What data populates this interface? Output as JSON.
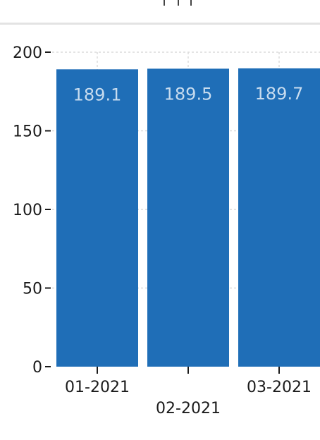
{
  "chart_data": {
    "type": "bar",
    "categories": [
      "01-2021",
      "02-2021",
      "03-2021"
    ],
    "values": [
      189.1,
      189.5,
      189.7
    ],
    "data_labels": [
      "189.1",
      "189.5",
      "189.7"
    ],
    "title": "",
    "xlabel": "",
    "ylabel": "",
    "ylim": [
      0,
      200
    ],
    "yticks": [
      0,
      50,
      100,
      150,
      200
    ],
    "ytick_labels": [
      "0",
      "50",
      "100",
      "150",
      "200"
    ],
    "grid": true,
    "legend": "none"
  },
  "colors": {
    "bar": "#1f6eb7",
    "data_label": "#c8dcef",
    "text": "#1a1a1a",
    "grid": "#dcdcdc",
    "separator": "#e3e3e3"
  }
}
